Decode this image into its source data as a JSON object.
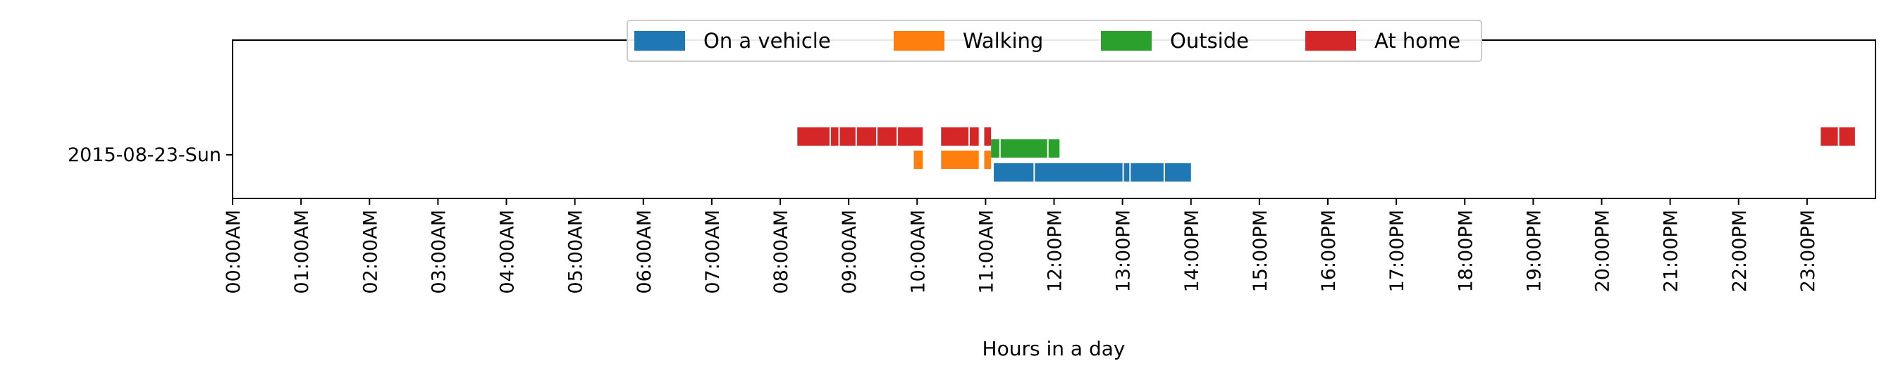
{
  "chart_data": {
    "type": "timeline",
    "xlabel": "Hours in a day",
    "ylabel": "",
    "xlim": [
      0,
      24
    ],
    "x_ticks": [
      "00:00AM",
      "01:00AM",
      "02:00AM",
      "03:00AM",
      "04:00AM",
      "05:00AM",
      "06:00AM",
      "07:00AM",
      "08:00AM",
      "09:00AM",
      "10:00AM",
      "11:00AM",
      "12:00PM",
      "13:00PM",
      "14:00PM",
      "15:00PM",
      "16:00PM",
      "17:00PM",
      "18:00PM",
      "19:00PM",
      "20:00PM",
      "21:00PM",
      "22:00PM",
      "23:00PM"
    ],
    "categories": [
      "2015-08-23-Sun"
    ],
    "legend_position": "top-center",
    "grid": false,
    "series": [
      {
        "name": "On a vehicle",
        "color": "#1f77b4",
        "segments": [
          [
            11.12,
            11.7
          ],
          [
            11.72,
            13.0
          ],
          [
            13.02,
            13.1
          ],
          [
            13.12,
            13.6
          ],
          [
            13.62,
            14.0
          ]
        ]
      },
      {
        "name": "Walking",
        "color": "#ff7f0e",
        "segments": [
          [
            9.95,
            10.08
          ],
          [
            10.35,
            10.9
          ],
          [
            10.98,
            11.08
          ]
        ]
      },
      {
        "name": "Outside",
        "color": "#2ca02c",
        "segments": [
          [
            11.08,
            11.2
          ],
          [
            11.22,
            11.9
          ],
          [
            11.92,
            12.08
          ]
        ]
      },
      {
        "name": "At home",
        "color": "#d62728",
        "segments": [
          [
            8.25,
            8.72
          ],
          [
            8.74,
            8.85
          ],
          [
            8.87,
            9.1
          ],
          [
            9.12,
            9.4
          ],
          [
            9.42,
            9.7
          ],
          [
            9.72,
            10.08
          ],
          [
            10.35,
            10.75
          ],
          [
            10.77,
            10.9
          ],
          [
            10.98,
            11.08
          ],
          [
            23.2,
            23.45
          ],
          [
            23.47,
            23.7
          ]
        ]
      }
    ]
  }
}
